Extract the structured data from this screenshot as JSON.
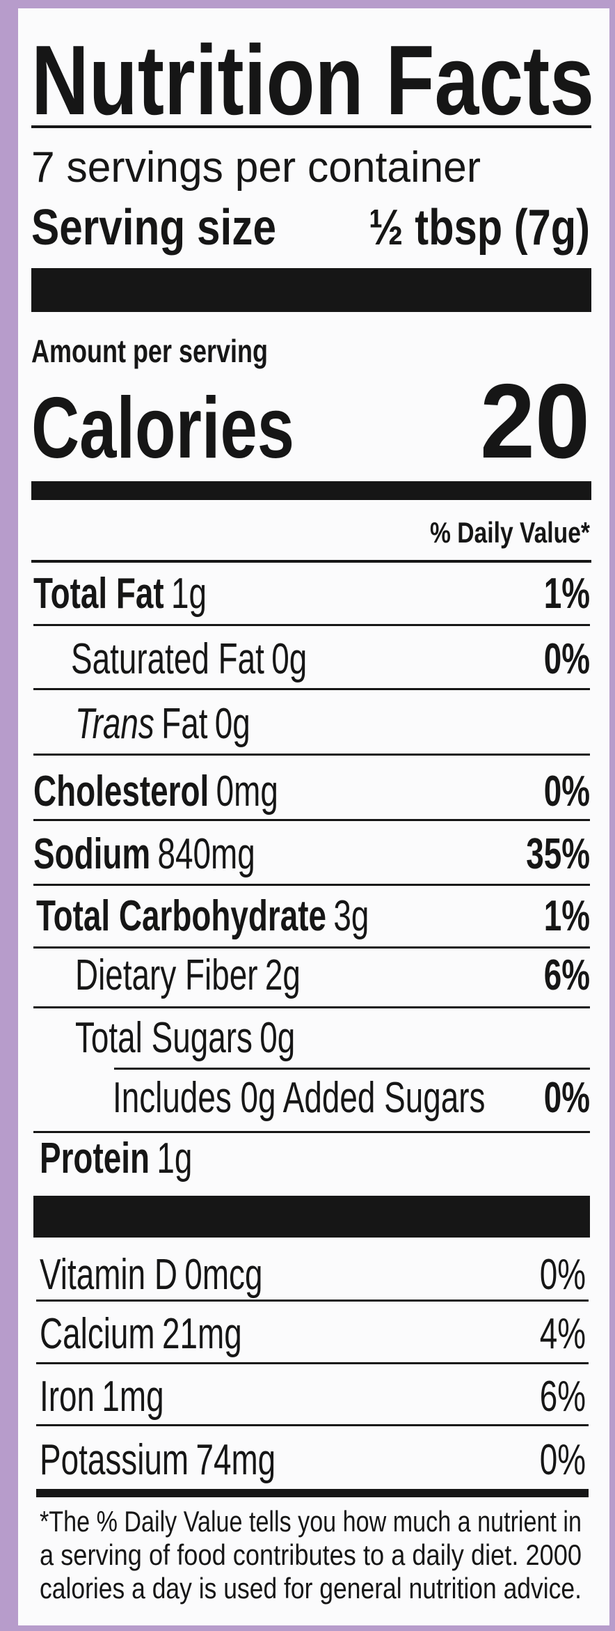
{
  "header": {
    "title": "Nutrition Facts",
    "servings": "7 servings per container",
    "serving_size_label": "Serving size",
    "serving_size": "½ tbsp (7g)"
  },
  "calories": {
    "label_small": "Amount per serving",
    "label": "Calories",
    "value": "20"
  },
  "daily_value_header": "% Daily Value*",
  "nutrients": [
    {
      "name": "Total Fat",
      "amount": "1g",
      "dv": "1%"
    },
    {
      "name": "Saturated Fat",
      "amount": "0g",
      "dv": "0%"
    },
    {
      "name_italic": "Trans",
      "name": "Fat",
      "amount": "0g"
    },
    {
      "name": "Cholesterol",
      "amount": "0mg",
      "dv": "0%"
    },
    {
      "name": "Sodium",
      "amount": "840mg",
      "dv": "35%"
    },
    {
      "name": "Total Carbohydrate",
      "amount": "3g",
      "dv": "1%"
    },
    {
      "name": "Dietary Fiber",
      "amount": "2g",
      "dv": "6%"
    },
    {
      "name": "Total Sugars",
      "amount": "0g"
    },
    {
      "name": "Includes 0g Added Sugars",
      "dv": "0%"
    },
    {
      "name": "Protein",
      "amount": "1g"
    }
  ],
  "vitamins": [
    {
      "name": "Vitamin D",
      "amount": "0mcg",
      "dv": "0%"
    },
    {
      "name": "Calcium",
      "amount": "21mg",
      "dv": "4%"
    },
    {
      "name": "Iron",
      "amount": "1mg",
      "dv": "6%"
    },
    {
      "name": "Potassium",
      "amount": "74mg",
      "dv": "0%"
    }
  ],
  "footnote": [
    "*The % Daily Value tells you how much a nutrient in",
    "a serving of food contributes to a daily diet. 2000",
    "calories a day is used for general nutrition advice."
  ]
}
